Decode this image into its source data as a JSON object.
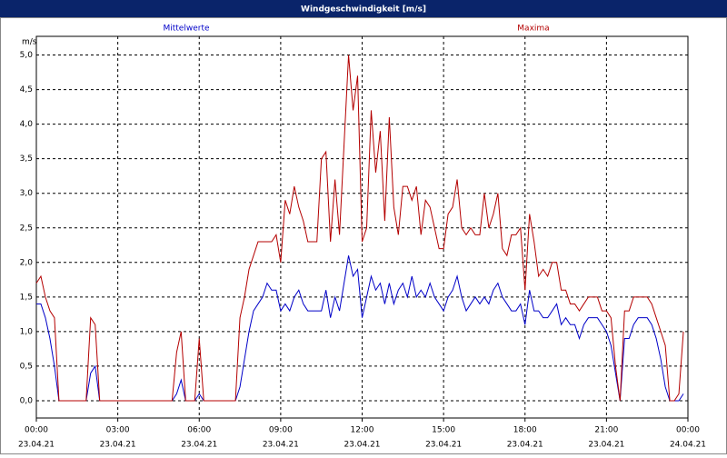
{
  "chart_data": {
    "type": "line",
    "title": "Windgeschwindigkeit [m/s]",
    "y_label": "m/s",
    "x": [
      0,
      10,
      20,
      30,
      40,
      50,
      60,
      70,
      80,
      90,
      100,
      110,
      120,
      130,
      140,
      150,
      160,
      170,
      180,
      190,
      200,
      210,
      220,
      230,
      240,
      250,
      260,
      270,
      280,
      290,
      300,
      310,
      320,
      330,
      340,
      350,
      360,
      370,
      380,
      390,
      400,
      410,
      420,
      430,
      440,
      450,
      460,
      470,
      480,
      490,
      500,
      510,
      520,
      530,
      540,
      550,
      560,
      570,
      580,
      590,
      600,
      610,
      620,
      630,
      640,
      650,
      660,
      670,
      680,
      690,
      700,
      710,
      720,
      730,
      740,
      750,
      760,
      770,
      780,
      790,
      800,
      810,
      820,
      830,
      840,
      850,
      860,
      870,
      880,
      890,
      900,
      910,
      920,
      930,
      940,
      950,
      960,
      970,
      980,
      990,
      1000,
      1010,
      1020,
      1030,
      1040,
      1050,
      1060,
      1070,
      1080,
      1090,
      1100,
      1110,
      1120,
      1130,
      1140,
      1150,
      1160,
      1170,
      1180,
      1190,
      1200,
      1210,
      1220,
      1230,
      1240,
      1250,
      1260,
      1270,
      1280,
      1290,
      1300,
      1310,
      1320,
      1330,
      1340,
      1350,
      1360,
      1370,
      1380,
      1390,
      1400,
      1410,
      1420,
      1430
    ],
    "series": [
      {
        "name": "Mittelwerte",
        "color": "#0000c8",
        "values": [
          1.4,
          1.4,
          1.2,
          0.9,
          0.5,
          0,
          0,
          0,
          0,
          0,
          0,
          0,
          0.4,
          0.5,
          0,
          0,
          0,
          0,
          0,
          0,
          0,
          0,
          0,
          0,
          0,
          0,
          0,
          0,
          0,
          0,
          0,
          0.1,
          0.3,
          0,
          0,
          0,
          0.1,
          0,
          0,
          0,
          0,
          0,
          0,
          0,
          0,
          0.2,
          0.6,
          1.0,
          1.3,
          1.4,
          1.5,
          1.7,
          1.6,
          1.6,
          1.3,
          1.4,
          1.3,
          1.5,
          1.6,
          1.4,
          1.3,
          1.3,
          1.3,
          1.3,
          1.6,
          1.2,
          1.5,
          1.3,
          1.7,
          2.1,
          1.8,
          1.9,
          1.2,
          1.5,
          1.8,
          1.6,
          1.7,
          1.4,
          1.7,
          1.4,
          1.6,
          1.7,
          1.5,
          1.8,
          1.5,
          1.6,
          1.5,
          1.7,
          1.5,
          1.4,
          1.3,
          1.5,
          1.6,
          1.8,
          1.5,
          1.3,
          1.4,
          1.5,
          1.4,
          1.5,
          1.4,
          1.6,
          1.7,
          1.5,
          1.4,
          1.3,
          1.3,
          1.4,
          1.1,
          1.6,
          1.3,
          1.3,
          1.2,
          1.2,
          1.3,
          1.4,
          1.1,
          1.2,
          1.1,
          1.1,
          0.9,
          1.1,
          1.2,
          1.2,
          1.2,
          1.1,
          1.0,
          0.8,
          0.4,
          0,
          0.9,
          0.9,
          1.1,
          1.2,
          1.2,
          1.2,
          1.1,
          0.9,
          0.6,
          0.2,
          0,
          0,
          0,
          0.1
        ]
      },
      {
        "name": "Maxima",
        "color": "#b40000",
        "values": [
          1.7,
          1.8,
          1.5,
          1.3,
          1.2,
          0,
          0,
          0,
          0,
          0,
          0,
          0,
          1.2,
          1.1,
          0,
          0,
          0,
          0,
          0,
          0,
          0,
          0,
          0,
          0,
          0,
          0,
          0,
          0,
          0,
          0,
          0,
          0.7,
          1.0,
          0,
          0,
          0,
          0.9,
          0,
          0,
          0,
          0,
          0,
          0,
          0,
          0,
          1.2,
          1.5,
          1.9,
          2.1,
          2.3,
          2.3,
          2.3,
          2.3,
          2.4,
          2.0,
          2.9,
          2.7,
          3.1,
          2.8,
          2.6,
          2.3,
          2.3,
          2.3,
          3.5,
          3.6,
          2.3,
          3.2,
          2.4,
          3.7,
          5.0,
          4.2,
          4.7,
          2.3,
          2.5,
          4.2,
          3.3,
          3.9,
          2.6,
          4.1,
          2.8,
          2.4,
          3.1,
          3.1,
          2.9,
          3.1,
          2.4,
          2.9,
          2.8,
          2.5,
          2.2,
          2.2,
          2.7,
          2.8,
          3.2,
          2.5,
          2.4,
          2.5,
          2.4,
          2.4,
          3.0,
          2.5,
          2.7,
          3.0,
          2.2,
          2.1,
          2.4,
          2.4,
          2.5,
          1.6,
          2.7,
          2.3,
          1.8,
          1.9,
          1.8,
          2.0,
          2.0,
          1.6,
          1.6,
          1.4,
          1.4,
          1.3,
          1.4,
          1.5,
          1.5,
          1.5,
          1.3,
          1.3,
          1.2,
          0.5,
          0,
          1.3,
          1.3,
          1.5,
          1.5,
          1.5,
          1.5,
          1.4,
          1.2,
          1.0,
          0.8,
          0,
          0,
          0.1,
          1.0
        ]
      }
    ],
    "xlim": [
      0,
      1440
    ],
    "xticks": [
      {
        "value": 0,
        "label": "00:00"
      },
      {
        "value": 180,
        "label": "03:00"
      },
      {
        "value": 360,
        "label": "06:00"
      },
      {
        "value": 540,
        "label": "09:00"
      },
      {
        "value": 720,
        "label": "12:00"
      },
      {
        "value": 900,
        "label": "15:00"
      },
      {
        "value": 1080,
        "label": "18:00"
      },
      {
        "value": 1260,
        "label": "21:00"
      },
      {
        "value": 1440,
        "label": "00:00"
      }
    ],
    "xtick_dates": [
      "23.04.21",
      "23.04.21",
      "23.04.21",
      "23.04.21",
      "23.04.21",
      "23.04.21",
      "23.04.21",
      "23.04.21",
      "24.04.21"
    ],
    "ylim": [
      -0.25,
      5.27
    ],
    "yticks": [
      {
        "value": 0,
        "label": "0,0"
      },
      {
        "value": 0.5,
        "label": "0,5"
      },
      {
        "value": 1,
        "label": "1,0"
      },
      {
        "value": 1.5,
        "label": "1,5"
      },
      {
        "value": 2,
        "label": "2,0"
      },
      {
        "value": 2.5,
        "label": "2,5"
      },
      {
        "value": 3,
        "label": "3,0"
      },
      {
        "value": 3.5,
        "label": "3,5"
      },
      {
        "value": 4,
        "label": "4,0"
      },
      {
        "value": 4.5,
        "label": "4,5"
      },
      {
        "value": 5,
        "label": "5,0"
      }
    ],
    "grid": true
  }
}
